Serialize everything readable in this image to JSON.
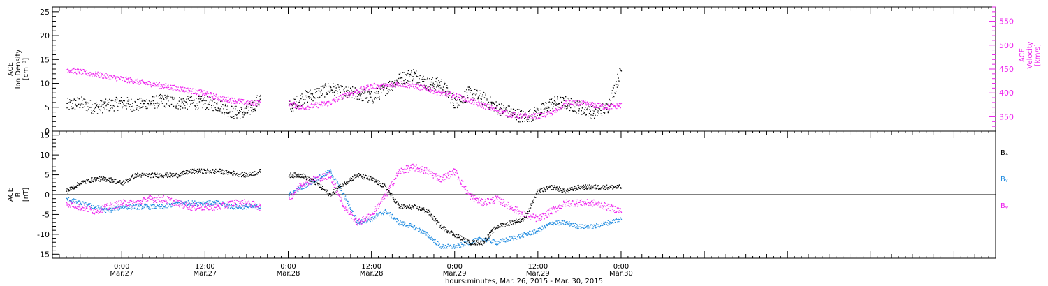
{
  "colors": {
    "black": "#000000",
    "magenta": "#ee22ee",
    "blue": "#1f8be0"
  },
  "x_axis": {
    "range_hours": [
      -10,
      126
    ],
    "ticks": [
      {
        "hour": 0,
        "time": "0:00",
        "date": "Mar.27"
      },
      {
        "hour": 12,
        "time": "12:00",
        "date": "Mar.27"
      },
      {
        "hour": 24,
        "time": "0:00",
        "date": "Mar.28"
      },
      {
        "hour": 36,
        "time": "12:00",
        "date": "Mar.28"
      },
      {
        "hour": 48,
        "time": "0:00",
        "date": "Mar.29"
      },
      {
        "hour": 60,
        "time": "12:00",
        "date": "Mar.29"
      },
      {
        "hour": 72,
        "time": "0:00",
        "date": "Mar.30"
      }
    ],
    "title": "hours:minutes, Mar. 26, 2015 - Mar. 30, 2015"
  },
  "chart_data": [
    {
      "type": "scatter",
      "panel": "top",
      "ylabel_left": [
        "ACE",
        "Ion Density",
        "[cm⁻³]"
      ],
      "ylabel_right": [
        "ACE",
        "Velocity",
        "[km/s]"
      ],
      "ylim_left": [
        0,
        26
      ],
      "ylim_right": [
        320,
        580
      ],
      "yticks_left": [
        0,
        5,
        10,
        15,
        20,
        25
      ],
      "yticks_right": [
        350,
        400,
        450,
        500,
        550
      ],
      "series": [
        {
          "color": "black",
          "axis": "left",
          "x": [
            -8,
            -6,
            -4,
            -2,
            0,
            2,
            4,
            6,
            8,
            10,
            12,
            14,
            16,
            18,
            20,
            22,
            24,
            26,
            28,
            30,
            32,
            34,
            36,
            38,
            40,
            42,
            44,
            46,
            48,
            50,
            52,
            54,
            56,
            58,
            60,
            62,
            64,
            66,
            68,
            70,
            72
          ],
          "y": [
            5.5,
            6,
            5,
            5.5,
            6,
            5.5,
            6,
            6.5,
            6,
            6,
            6,
            5.5,
            4,
            4,
            7,
            null,
            5,
            7,
            8,
            9,
            8,
            8,
            7,
            9,
            11,
            12,
            10,
            10,
            6,
            8,
            7,
            5,
            4,
            3,
            4,
            6,
            6,
            5,
            4,
            5,
            13
          ]
        },
        {
          "color": "magenta",
          "axis": "right",
          "x": [
            -8,
            -6,
            -4,
            -2,
            0,
            2,
            4,
            6,
            8,
            10,
            12,
            14,
            16,
            18,
            20,
            22,
            24,
            26,
            28,
            30,
            32,
            34,
            36,
            38,
            40,
            42,
            44,
            46,
            48,
            50,
            52,
            54,
            56,
            58,
            60,
            62,
            64,
            66,
            68,
            70,
            72
          ],
          "y": [
            450,
            445,
            440,
            435,
            430,
            425,
            420,
            415,
            410,
            405,
            400,
            390,
            385,
            380,
            380,
            null,
            380,
            370,
            375,
            380,
            395,
            405,
            415,
            415,
            420,
            415,
            410,
            400,
            395,
            385,
            375,
            365,
            355,
            352,
            352,
            358,
            380,
            380,
            375,
            372,
            375
          ]
        }
      ]
    },
    {
      "type": "scatter",
      "panel": "bottom",
      "ylabel_left": [
        "ACE",
        "B",
        "[nT]"
      ],
      "ylim": [
        -16,
        16
      ],
      "yticks": [
        -15,
        -10,
        -5,
        0,
        5,
        10,
        15
      ],
      "legend": [
        "Bₓ",
        "Bᵧ",
        "Bᵩ"
      ],
      "legend_placement": "right",
      "series": [
        {
          "name": "Bx",
          "color": "black",
          "x": [
            -8,
            -6,
            -4,
            -2,
            0,
            2,
            4,
            6,
            8,
            10,
            12,
            14,
            16,
            18,
            20,
            22,
            24,
            26,
            28,
            30,
            32,
            34,
            36,
            38,
            40,
            42,
            44,
            46,
            48,
            50,
            52,
            54,
            56,
            58,
            60,
            62,
            64,
            66,
            68,
            70,
            72
          ],
          "y": [
            1,
            3,
            4,
            4,
            3,
            5,
            5,
            5,
            5,
            6,
            6,
            6,
            5.5,
            5,
            6,
            null,
            5,
            5,
            3,
            0,
            3,
            5,
            4,
            2,
            -3,
            -3,
            -4,
            -8,
            -10,
            -12,
            -12,
            -8,
            -7,
            -6,
            1,
            2,
            1,
            2,
            2,
            2,
            2
          ]
        },
        {
          "name": "By",
          "color": "blue",
          "x": [
            -8,
            -6,
            -4,
            -2,
            0,
            2,
            4,
            6,
            8,
            10,
            12,
            14,
            16,
            18,
            20,
            22,
            24,
            26,
            28,
            30,
            32,
            34,
            36,
            38,
            40,
            42,
            44,
            46,
            48,
            50,
            52,
            54,
            56,
            58,
            60,
            62,
            64,
            66,
            68,
            70,
            72
          ],
          "y": [
            -1,
            -2,
            -3,
            -4,
            -3,
            -3,
            -3,
            -3,
            -2,
            -2,
            -2,
            -2,
            -3,
            -3,
            -3,
            null,
            0,
            2,
            4,
            6,
            0,
            -7,
            -6,
            -4,
            -7,
            -8,
            -10,
            -13,
            -13,
            -12,
            -11,
            -12,
            -11,
            -10,
            -9,
            -7,
            -7,
            -8,
            -8,
            -7,
            -6
          ]
        },
        {
          "name": "Bz",
          "color": "magenta",
          "x": [
            -8,
            -6,
            -4,
            -2,
            0,
            2,
            4,
            6,
            8,
            10,
            12,
            14,
            16,
            18,
            20,
            22,
            24,
            26,
            28,
            30,
            32,
            34,
            36,
            38,
            40,
            42,
            44,
            46,
            48,
            50,
            52,
            54,
            56,
            58,
            60,
            62,
            64,
            66,
            68,
            70,
            72
          ],
          "y": [
            -2,
            -3,
            -4,
            -3,
            -2,
            -2,
            -1,
            -1,
            -2,
            -3,
            -3,
            -3,
            -2,
            -2,
            -3,
            null,
            -1,
            3,
            4,
            5,
            -3,
            -7,
            -5,
            0,
            6,
            7,
            6,
            4,
            6,
            0,
            -2,
            -1,
            -3,
            -5,
            -6,
            -4,
            -2,
            -2,
            -2,
            -3,
            -4
          ]
        }
      ]
    }
  ]
}
